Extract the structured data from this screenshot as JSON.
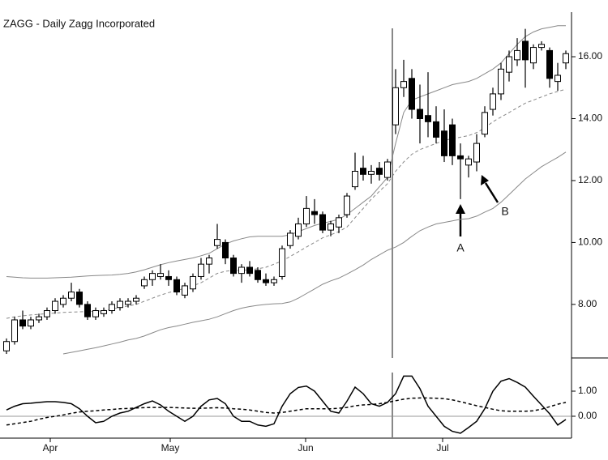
{
  "chart_data": [
    {
      "type": "candlestick",
      "title": "ZAGG - Daily  Zagg Incorporated",
      "xlim": [
        -0.8,
        69.7
      ],
      "ylim": [
        6.27,
        17.44
      ],
      "yticks": [
        {
          "value": 8,
          "label": "8.00"
        },
        {
          "value": 10,
          "label": "10.00"
        },
        {
          "value": 12,
          "label": "12.00"
        },
        {
          "value": 14,
          "label": "14.00"
        },
        {
          "value": 16,
          "label": "16.00"
        }
      ],
      "up_color": "#ffffff",
      "down_color": "#000000",
      "vline_x": 47.6,
      "open": [
        6.5,
        6.8,
        7.5,
        7.3,
        7.5,
        7.6,
        7.8,
        8.0,
        8.2,
        8.4,
        8.0,
        7.6,
        7.7,
        7.8,
        7.9,
        8.0,
        8.1,
        8.6,
        8.8,
        8.9,
        8.9,
        8.8,
        8.3,
        8.5,
        8.9,
        9.3,
        9.9,
        10.0,
        9.5,
        9.0,
        9.2,
        9.1,
        8.8,
        8.7,
        8.9,
        9.9,
        10.2,
        10.6,
        11.0,
        10.9,
        10.4,
        10.5,
        10.9,
        11.8,
        12.4,
        12.2,
        12.4,
        12.1,
        13.8,
        15.0,
        15.3,
        14.3,
        14.1,
        13.9,
        13.6,
        13.8,
        12.8,
        12.5,
        12.6,
        13.5,
        14.3,
        14.8,
        15.5,
        15.9,
        16.5,
        15.8,
        16.3,
        16.2,
        15.2,
        15.8
      ],
      "high": [
        6.9,
        7.6,
        7.8,
        7.6,
        7.7,
        7.9,
        8.2,
        8.3,
        8.7,
        8.5,
        8.1,
        7.9,
        7.9,
        8.1,
        8.2,
        8.2,
        8.3,
        8.9,
        9.1,
        9.3,
        9.1,
        8.9,
        8.7,
        9.0,
        9.5,
        9.6,
        10.6,
        10.1,
        9.6,
        9.3,
        9.4,
        9.2,
        9.0,
        8.9,
        9.9,
        10.4,
        10.8,
        11.5,
        11.4,
        11.0,
        10.7,
        10.9,
        11.6,
        12.9,
        12.8,
        12.5,
        12.6,
        12.7,
        15.6,
        15.9,
        15.6,
        15.1,
        15.5,
        14.4,
        14.3,
        14.0,
        13.2,
        12.8,
        13.5,
        14.4,
        15.0,
        15.8,
        16.2,
        16.6,
        16.9,
        16.4,
        16.5,
        16.3,
        15.8,
        16.2
      ],
      "low": [
        6.4,
        6.7,
        7.2,
        7.2,
        7.4,
        7.5,
        7.7,
        7.9,
        8.1,
        7.9,
        7.5,
        7.5,
        7.6,
        7.7,
        7.8,
        7.9,
        8.0,
        8.5,
        8.6,
        8.8,
        8.6,
        8.3,
        8.2,
        8.4,
        8.8,
        9.0,
        9.8,
        9.3,
        8.9,
        8.7,
        8.9,
        8.7,
        8.6,
        8.6,
        8.8,
        9.8,
        10.1,
        10.5,
        10.6,
        10.3,
        10.2,
        10.3,
        10.8,
        11.7,
        12.0,
        11.9,
        12.0,
        12.0,
        13.5,
        14.7,
        14.0,
        13.2,
        13.4,
        13.2,
        12.6,
        12.5,
        11.4,
        12.1,
        12.3,
        13.4,
        14.1,
        14.6,
        15.2,
        15.7,
        15.0,
        15.6,
        16.2,
        15.0,
        14.9,
        15.6
      ],
      "close": [
        6.8,
        7.5,
        7.3,
        7.5,
        7.6,
        7.8,
        8.1,
        8.2,
        8.4,
        8.0,
        7.6,
        7.8,
        7.8,
        8.0,
        8.1,
        8.1,
        8.2,
        8.8,
        9.0,
        9.0,
        8.8,
        8.4,
        8.6,
        8.9,
        9.3,
        9.5,
        10.1,
        9.5,
        9.0,
        9.2,
        9.0,
        8.8,
        8.7,
        8.8,
        9.8,
        10.3,
        10.6,
        11.1,
        10.9,
        10.4,
        10.6,
        10.8,
        11.5,
        12.3,
        12.2,
        12.3,
        12.2,
        12.6,
        15.0,
        15.2,
        14.3,
        14.0,
        13.9,
        13.4,
        12.8,
        12.8,
        12.7,
        12.7,
        13.2,
        14.2,
        14.8,
        15.6,
        16.0,
        16.2,
        15.9,
        16.3,
        16.4,
        15.3,
        15.4,
        16.1
      ],
      "series": [
        {
          "color": "#888888",
          "values": [
            8.9,
            8.88,
            8.86,
            8.85,
            8.85,
            8.85,
            8.86,
            8.87,
            8.88,
            8.9,
            8.92,
            8.93,
            8.94,
            8.95,
            8.97,
            9.0,
            9.05,
            9.12,
            9.2,
            9.28,
            9.35,
            9.4,
            9.45,
            9.5,
            9.57,
            9.65,
            9.8,
            9.95,
            10.05,
            10.12,
            10.18,
            10.2,
            10.2,
            10.2,
            10.2,
            10.25,
            10.35,
            10.45,
            10.55,
            10.62,
            10.68,
            10.75,
            10.9,
            11.1,
            11.3,
            11.5,
            11.8,
            12.1,
            13.2,
            14.2,
            14.6,
            14.7,
            14.8,
            14.9,
            15.0,
            15.1,
            15.15,
            15.2,
            15.3,
            15.45,
            15.6,
            15.8,
            16.1,
            16.4,
            16.65,
            16.8,
            16.9,
            16.95,
            17.0,
            17.0
          ]
        },
        {
          "color": "#888888",
          "dashed": true,
          "values": [
            7.55,
            7.6,
            7.63,
            7.66,
            7.68,
            7.7,
            7.72,
            7.74,
            7.75,
            7.76,
            7.77,
            7.78,
            7.8,
            7.85,
            7.9,
            7.95,
            8.0,
            8.1,
            8.2,
            8.3,
            8.38,
            8.45,
            8.52,
            8.6,
            8.7,
            8.85,
            9.0,
            9.07,
            9.1,
            9.1,
            9.12,
            9.15,
            9.2,
            9.3,
            9.4,
            9.55,
            9.7,
            9.85,
            10.0,
            10.15,
            10.25,
            10.35,
            10.5,
            10.8,
            11.1,
            11.4,
            11.65,
            11.9,
            12.3,
            12.6,
            12.85,
            13.0,
            13.1,
            13.2,
            13.3,
            13.35,
            13.4,
            13.45,
            13.55,
            13.7,
            13.9,
            14.05,
            14.2,
            14.35,
            14.5,
            14.6,
            14.7,
            14.8,
            14.88,
            14.95
          ]
        },
        {
          "color": "#888888",
          "values": [
            null,
            null,
            null,
            null,
            null,
            null,
            null,
            6.4,
            6.45,
            6.5,
            6.55,
            6.6,
            6.66,
            6.72,
            6.78,
            6.85,
            6.9,
            6.98,
            7.08,
            7.18,
            7.25,
            7.3,
            7.36,
            7.42,
            7.47,
            7.52,
            7.6,
            7.7,
            7.8,
            7.88,
            7.93,
            7.97,
            8.0,
            8.02,
            8.03,
            8.08,
            8.2,
            8.35,
            8.5,
            8.65,
            8.76,
            8.85,
            8.98,
            9.12,
            9.27,
            9.45,
            9.6,
            9.75,
            9.85,
            10.0,
            10.2,
            10.38,
            10.5,
            10.6,
            10.65,
            10.7,
            10.75,
            10.77,
            10.85,
            10.98,
            11.1,
            11.3,
            11.55,
            11.8,
            12.05,
            12.25,
            12.45,
            12.6,
            12.75,
            12.92
          ]
        }
      ],
      "annotations": [
        {
          "text": "A"
        },
        {
          "text": "B"
        }
      ]
    },
    {
      "type": "line",
      "xlim": [
        -0.8,
        69.7
      ],
      "ylim": [
        -0.84,
        2.13
      ],
      "yticks": [
        {
          "value": 0,
          "label": "0.00"
        },
        {
          "value": 1,
          "label": "1.00"
        }
      ],
      "xticks": [
        {
          "value": 5.4,
          "label": "Apr"
        },
        {
          "value": 20.2,
          "label": "May"
        },
        {
          "value": 36.9,
          "label": "Jun"
        },
        {
          "value": 53.8,
          "label": "Jul"
        }
      ],
      "vline_x": 47.6,
      "series": [
        {
          "color": "#000000",
          "values": [
            0.25,
            0.4,
            0.5,
            0.52,
            0.55,
            0.58,
            0.58,
            0.55,
            0.5,
            0.3,
            0.0,
            -0.26,
            -0.2,
            0.0,
            0.13,
            0.2,
            0.35,
            0.5,
            0.61,
            0.45,
            0.2,
            0.0,
            -0.2,
            0.0,
            0.4,
            0.65,
            0.71,
            0.5,
            0.0,
            -0.2,
            -0.2,
            -0.35,
            -0.4,
            -0.3,
            0.4,
            0.9,
            1.15,
            1.2,
            1.0,
            0.6,
            0.2,
            0.13,
            0.6,
            1.16,
            0.9,
            0.5,
            0.4,
            0.55,
            0.9,
            1.6,
            1.6,
            1.1,
            0.4,
            0.0,
            -0.4,
            -0.6,
            -0.68,
            -0.45,
            -0.2,
            0.3,
            1.0,
            1.4,
            1.5,
            1.35,
            1.16,
            0.8,
            0.45,
            0.1,
            -0.35,
            -0.13
          ]
        },
        {
          "color": "#000000",
          "dashed": true,
          "values": [
            -0.35,
            -0.3,
            -0.25,
            -0.2,
            -0.12,
            -0.05,
            0.0,
            0.05,
            0.12,
            0.17,
            0.2,
            0.22,
            0.25,
            0.27,
            0.3,
            0.31,
            0.33,
            0.34,
            0.35,
            0.35,
            0.35,
            0.34,
            0.33,
            0.32,
            0.32,
            0.33,
            0.34,
            0.33,
            0.3,
            0.28,
            0.25,
            0.2,
            0.15,
            0.13,
            0.15,
            0.2,
            0.25,
            0.3,
            0.3,
            0.3,
            0.3,
            0.32,
            0.35,
            0.42,
            0.45,
            0.47,
            0.5,
            0.55,
            0.62,
            0.68,
            0.72,
            0.73,
            0.73,
            0.72,
            0.7,
            0.65,
            0.58,
            0.5,
            0.42,
            0.35,
            0.28,
            0.22,
            0.2,
            0.2,
            0.2,
            0.22,
            0.28,
            0.38,
            0.48,
            0.55
          ]
        }
      ]
    }
  ]
}
